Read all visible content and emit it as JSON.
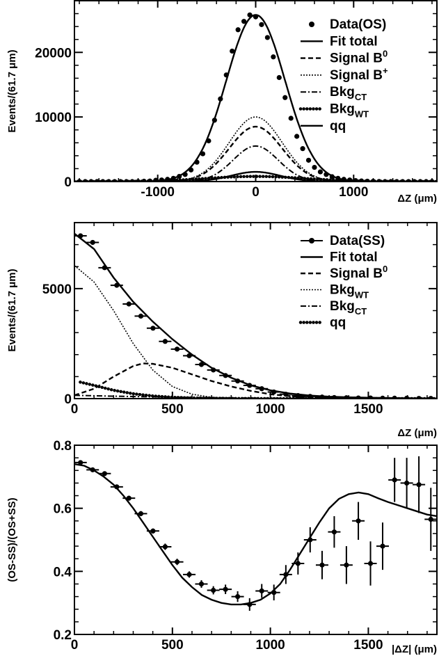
{
  "chart_data": [
    {
      "type": "line",
      "panel": "top",
      "ylabel": "Events/(61.7 μm)",
      "xlabel": "ΔZ (μm)",
      "xlim": [
        -1850,
        1850
      ],
      "ylim": [
        0,
        28000
      ],
      "xticks": [
        -1000,
        0,
        1000
      ],
      "xtick_labels": [
        "-1000",
        "0",
        "1000"
      ],
      "yticks": [
        0,
        10000,
        20000
      ],
      "ytick_labels": [
        "0",
        "10000",
        "20000"
      ],
      "legend_position": "top-right",
      "legend": [
        {
          "label": "Data(OS)",
          "style": "marker"
        },
        {
          "label": "Fit total",
          "style": "solid"
        },
        {
          "label": "Signal B",
          "sup": "0",
          "style": "dashed"
        },
        {
          "label": "Signal B",
          "sup": "+",
          "style": "dotted"
        },
        {
          "label": "Bkg",
          "sub": "CT",
          "style": "dashdot"
        },
        {
          "label": "Bkg",
          "sub": "WT",
          "style": "dots"
        },
        {
          "label": "qq",
          "style": "solid"
        }
      ],
      "gaussian_components": [
        {
          "style": "solid",
          "amp": 25800,
          "sigma": 300
        },
        {
          "style": "dotted",
          "amp": 10000,
          "sigma": 270
        },
        {
          "style": "dashed",
          "amp": 8500,
          "sigma": 270
        },
        {
          "style": "dashdot",
          "amp": 5500,
          "sigma": 230
        },
        {
          "style": "solid",
          "amp": 1500,
          "sigma": 250
        },
        {
          "style": "dots",
          "amp": 800,
          "sigma": 500
        }
      ],
      "points": {
        "x": [
          -1800,
          -1740,
          -1680,
          -1620,
          -1560,
          -1500,
          -1440,
          -1380,
          -1320,
          -1260,
          -1200,
          -1140,
          -1080,
          -1020,
          -960,
          -900,
          -840,
          -780,
          -720,
          -660,
          -600,
          -540,
          -480,
          -420,
          -360,
          -300,
          -240,
          -180,
          -120,
          -60,
          0,
          60,
          120,
          180,
          240,
          300,
          360,
          420,
          480,
          540,
          600,
          660,
          720,
          780,
          840,
          900,
          960,
          1020,
          1080,
          1140,
          1200,
          1260,
          1320,
          1380,
          1440,
          1500,
          1560,
          1620,
          1680,
          1740,
          1800
        ],
        "y": [
          0,
          0,
          0,
          0,
          0,
          0,
          0,
          0,
          0,
          0,
          0,
          50,
          80,
          200,
          250,
          350,
          500,
          800,
          1100,
          1800,
          3000,
          4300,
          6300,
          9500,
          12800,
          16500,
          20200,
          23500,
          24800,
          25800,
          25500,
          24300,
          22300,
          19300,
          16100,
          13000,
          9800,
          7000,
          5100,
          3300,
          2200,
          1500,
          1100,
          750,
          500,
          350,
          250,
          150,
          100,
          60,
          40,
          20,
          0,
          0,
          0,
          0,
          0,
          0,
          0,
          0,
          0
        ]
      }
    },
    {
      "type": "line",
      "panel": "middle",
      "ylabel": "Events/(61.7 μm)",
      "xlabel": "ΔZ (μm)",
      "xlim": [
        0,
        1850
      ],
      "ylim": [
        0,
        8000
      ],
      "xticks": [
        0,
        500,
        1000,
        1500
      ],
      "xtick_labels": [
        "0",
        "500",
        "1000",
        "1500"
      ],
      "yticks": [
        0,
        5000
      ],
      "ytick_labels": [
        "0",
        "5000"
      ],
      "legend_position": "top-right",
      "legend": [
        {
          "label": "Data(SS)",
          "style": "marker"
        },
        {
          "label": "Fit total",
          "style": "solid"
        },
        {
          "label": "Signal B",
          "sup": "0",
          "style": "dashed"
        },
        {
          "label": "Bkg",
          "sub": "WT",
          "style": "dotted"
        },
        {
          "label": "Bkg",
          "sub": "CT",
          "style": "dashdot"
        },
        {
          "label": "qq",
          "style": "dots"
        }
      ],
      "points": {
        "x": [
          31,
          93,
          154,
          216,
          278,
          339,
          401,
          463,
          524,
          586,
          648,
          709,
          771,
          833,
          894,
          956,
          1018,
          1079,
          1141,
          1203,
          1264,
          1326,
          1388,
          1449,
          1511,
          1573,
          1634,
          1696,
          1758,
          1819
        ],
        "y": [
          7400,
          7100,
          5950,
          5150,
          4300,
          3750,
          3200,
          2600,
          2250,
          1950,
          1550,
          1300,
          1050,
          800,
          600,
          450,
          300,
          200,
          140,
          100,
          70,
          50,
          40,
          30,
          30,
          20,
          20,
          20,
          10,
          10
        ]
      },
      "curves": [
        {
          "style": "solid",
          "x": [
            0,
            100,
            200,
            300,
            400,
            500,
            600,
            700,
            800,
            900,
            1000,
            1100,
            1200,
            1300,
            1400,
            1500,
            1600,
            1700,
            1850
          ],
          "y": [
            7500,
            6800,
            5500,
            4400,
            3500,
            2700,
            2000,
            1400,
            950,
            600,
            380,
            230,
            140,
            90,
            60,
            40,
            30,
            20,
            10
          ]
        },
        {
          "style": "dotted",
          "x": [
            0,
            100,
            200,
            300,
            400,
            500,
            600,
            700,
            800,
            900,
            1000
          ],
          "y": [
            6050,
            5300,
            4000,
            2500,
            1300,
            550,
            200,
            60,
            20,
            5,
            0
          ]
        },
        {
          "style": "dashed",
          "x": [
            0,
            100,
            200,
            300,
            350,
            400,
            500,
            600,
            700,
            800,
            900,
            1000,
            1100,
            1200,
            1400,
            1600,
            1850
          ],
          "y": [
            150,
            450,
            1000,
            1480,
            1600,
            1580,
            1400,
            1100,
            800,
            550,
            350,
            200,
            110,
            60,
            20,
            5,
            0
          ]
        },
        {
          "style": "dashdot",
          "x": [
            0,
            200,
            400,
            600,
            800,
            1000,
            1400,
            1850
          ],
          "y": [
            150,
            110,
            80,
            55,
            35,
            20,
            8,
            0
          ]
        },
        {
          "style": "dots",
          "x": [
            30,
            100,
            200,
            300,
            400,
            500,
            600,
            700,
            800,
            1000,
            1850
          ],
          "y": [
            750,
            600,
            380,
            220,
            120,
            60,
            30,
            15,
            5,
            0,
            0
          ]
        }
      ]
    },
    {
      "type": "scatter",
      "panel": "bottom",
      "ylabel": "(OS-SS)/(OS+SS)",
      "xlabel": "|ΔZ| (μm)",
      "xlim": [
        0,
        1850
      ],
      "ylim": [
        0.2,
        0.8
      ],
      "xticks": [
        0,
        500,
        1000,
        1500
      ],
      "xtick_labels": [
        "0",
        "500",
        "1000",
        "1500"
      ],
      "yticks": [
        0.2,
        0.4,
        0.6,
        0.8
      ],
      "ytick_labels": [
        "0.2",
        "0.4",
        "0.6",
        "0.8"
      ],
      "points": {
        "x": [
          31,
          93,
          154,
          216,
          278,
          339,
          401,
          463,
          524,
          586,
          648,
          709,
          771,
          833,
          894,
          956,
          1018,
          1079,
          1141,
          1203,
          1264,
          1326,
          1388,
          1449,
          1511,
          1573,
          1634,
          1696,
          1758,
          1819
        ],
        "y": [
          0.745,
          0.722,
          0.71,
          0.668,
          0.632,
          0.583,
          0.528,
          0.478,
          0.43,
          0.39,
          0.36,
          0.34,
          0.343,
          0.32,
          0.295,
          0.338,
          0.333,
          0.39,
          0.425,
          0.5,
          0.42,
          0.525,
          0.42,
          0.56,
          0.425,
          0.48,
          0.69,
          0.68,
          0.675,
          0.565
        ],
        "yerr": [
          0.005,
          0.005,
          0.006,
          0.006,
          0.007,
          0.008,
          0.008,
          0.01,
          0.01,
          0.01,
          0.012,
          0.013,
          0.015,
          0.017,
          0.02,
          0.022,
          0.025,
          0.03,
          0.035,
          0.04,
          0.045,
          0.05,
          0.06,
          0.06,
          0.07,
          0.075,
          0.07,
          0.08,
          0.09,
          0.1
        ]
      },
      "curve": {
        "style": "solid",
        "x": [
          0,
          50,
          100,
          150,
          200,
          250,
          300,
          350,
          400,
          450,
          500,
          550,
          600,
          650,
          700,
          750,
          800,
          850,
          900,
          950,
          1000,
          1050,
          1100,
          1150,
          1200,
          1250,
          1300,
          1350,
          1400,
          1450,
          1500,
          1550,
          1600,
          1650,
          1700,
          1750,
          1800,
          1850
        ],
        "y": [
          0.74,
          0.735,
          0.72,
          0.7,
          0.675,
          0.64,
          0.6,
          0.555,
          0.51,
          0.465,
          0.42,
          0.38,
          0.35,
          0.325,
          0.31,
          0.3,
          0.295,
          0.295,
          0.3,
          0.31,
          0.33,
          0.36,
          0.405,
          0.455,
          0.505,
          0.555,
          0.6,
          0.63,
          0.645,
          0.65,
          0.645,
          0.632,
          0.62,
          0.61,
          0.6,
          0.59,
          0.58,
          0.575
        ]
      }
    }
  ]
}
